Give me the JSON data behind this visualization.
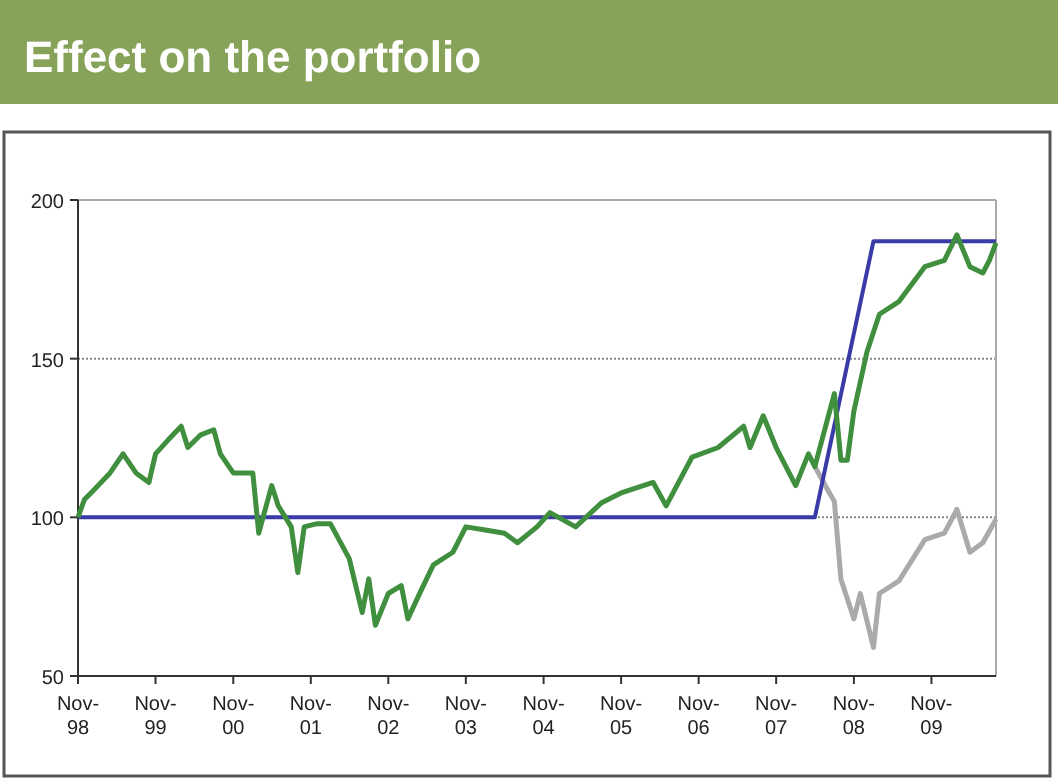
{
  "chart_data": {
    "type": "line",
    "title": "Effect on the portfolio",
    "xlim": [
      "1998-11",
      "2010-09"
    ],
    "xticks": [
      {
        "value": "1998-11",
        "label": "Nov-98"
      },
      {
        "value": "1999-11",
        "label": "Nov-99"
      },
      {
        "value": "2000-11",
        "label": "Nov-00"
      },
      {
        "value": "2001-11",
        "label": "Nov-01"
      },
      {
        "value": "2002-11",
        "label": "Nov-02"
      },
      {
        "value": "2003-11",
        "label": "Nov-03"
      },
      {
        "value": "2004-11",
        "label": "Nov-04"
      },
      {
        "value": "2005-11",
        "label": "Nov-05"
      },
      {
        "value": "2006-11",
        "label": "Nov-06"
      },
      {
        "value": "2007-11",
        "label": "Nov-07"
      },
      {
        "value": "2008-11",
        "label": "Nov-08"
      },
      {
        "value": "2009-11",
        "label": "Nov-09"
      }
    ],
    "ylim": [
      50,
      200
    ],
    "yticks": [
      50,
      100,
      150,
      200
    ],
    "grid": "y",
    "series": [
      {
        "color": "#aaaaaa",
        "x": [
          "2008-05",
          "2008-07",
          "2008-08",
          "2008-09",
          "2008-11",
          "2008-12",
          "2009-02",
          "2009-03",
          "2009-06",
          "2009-10",
          "2010-01",
          "2010-03",
          "2010-05",
          "2010-07",
          "2010-09"
        ],
        "values": [
          116,
          108.6,
          105,
          80.5,
          68,
          76,
          59,
          76,
          80,
          93,
          95,
          102.5,
          89,
          92,
          99.4
        ]
      },
      {
        "color": "#3a3aa8",
        "x": [
          "1998-11",
          "2008-05",
          "2009-02",
          "2010-09"
        ],
        "values": [
          100,
          100,
          187,
          187
        ]
      },
      {
        "color": "#3f8f3f",
        "x": [
          "1998-11",
          "1998-12",
          "1999-01",
          "1999-04",
          "1999-06",
          "1999-08",
          "1999-10",
          "1999-11",
          "2000-01",
          "2000-03",
          "2000-04",
          "2000-06",
          "2000-08",
          "2000-09",
          "2000-11",
          "2001-02",
          "2001-03",
          "2001-05",
          "2001-06",
          "2001-08",
          "2001-09",
          "2001-10",
          "2001-12",
          "2002-02",
          "2002-05",
          "2002-07",
          "2002-08",
          "2002-09",
          "2002-11",
          "2003-01",
          "2003-02",
          "2003-04",
          "2003-06",
          "2003-09",
          "2003-11",
          "2004-02",
          "2004-05",
          "2004-07",
          "2004-10",
          "2004-12",
          "2005-04",
          "2005-08",
          "2005-11",
          "2006-04",
          "2006-06",
          "2006-10",
          "2007-02",
          "2007-06",
          "2007-07",
          "2007-09",
          "2007-11",
          "2008-02",
          "2008-04",
          "2008-05",
          "2008-08",
          "2008-09",
          "2008-10",
          "2008-11",
          "2009-01",
          "2009-03",
          "2009-06",
          "2009-10",
          "2010-01",
          "2010-03",
          "2010-05",
          "2010-07",
          "2010-08",
          "2010-09"
        ],
        "values": [
          100,
          105.6,
          107.7,
          114,
          120,
          114,
          111,
          120,
          124.5,
          128.7,
          122,
          126,
          127.6,
          120,
          114,
          114,
          95,
          110,
          103.6,
          97,
          82.6,
          97,
          98,
          98,
          87,
          70,
          80.6,
          66,
          76,
          78.5,
          68,
          76.5,
          85,
          89,
          97,
          96,
          95,
          92,
          97,
          101.5,
          97,
          104.6,
          107.7,
          111,
          103.6,
          119,
          122,
          128.7,
          122,
          132,
          122,
          110,
          120,
          116,
          139,
          118,
          118,
          133.5,
          152,
          164,
          168,
          179,
          181,
          189,
          179,
          177,
          181,
          186.5
        ]
      }
    ]
  }
}
